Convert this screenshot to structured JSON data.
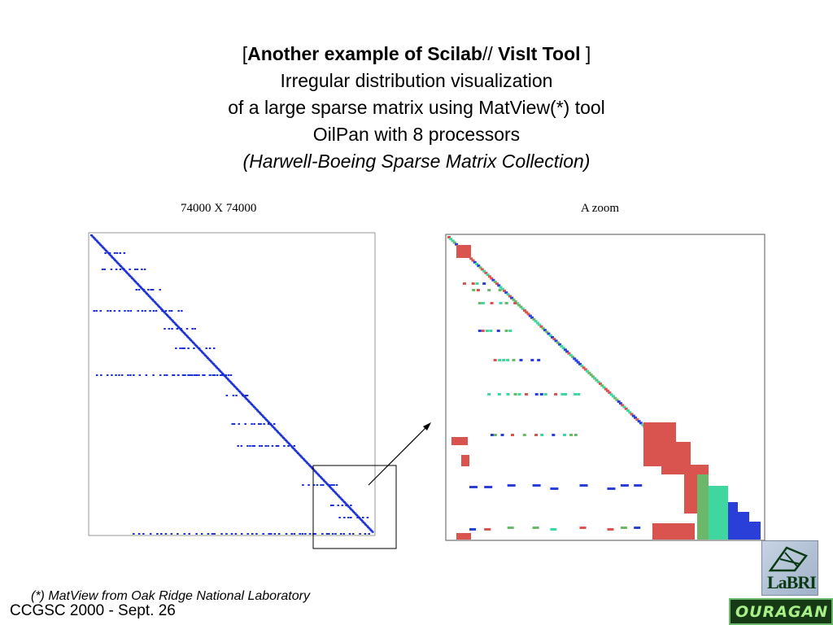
{
  "title": {
    "bracket_open": "[",
    "bold_a": "Another example of Scilab",
    "slashes": "// ",
    "bold_b": "VisIt Tool",
    "bracket_close": " ]",
    "line2": "Irregular distribution visualization",
    "line3": "of a large sparse matrix using MatView(*) tool",
    "line4": "OilPan with 8 processors",
    "line5": "(Harwell-Boeing Sparse Matrix Collection)"
  },
  "panels": {
    "left_caption": "74000 X 74000",
    "right_caption": "A zoom"
  },
  "footnote": "(*) MatView from Oak Ridge National Laboratory",
  "footer": "CCGSC 2000 - Sept. 26",
  "logos": {
    "labri": "LaBRI",
    "ouragan": "OURAGAN"
  },
  "colors": {
    "matrix_blue": "#1a2fd6",
    "zoom_red": "#d9534f",
    "zoom_teal": "#3fd6a0",
    "zoom_blue": "#2a3fd8",
    "zoom_green": "#6bb86b"
  }
}
